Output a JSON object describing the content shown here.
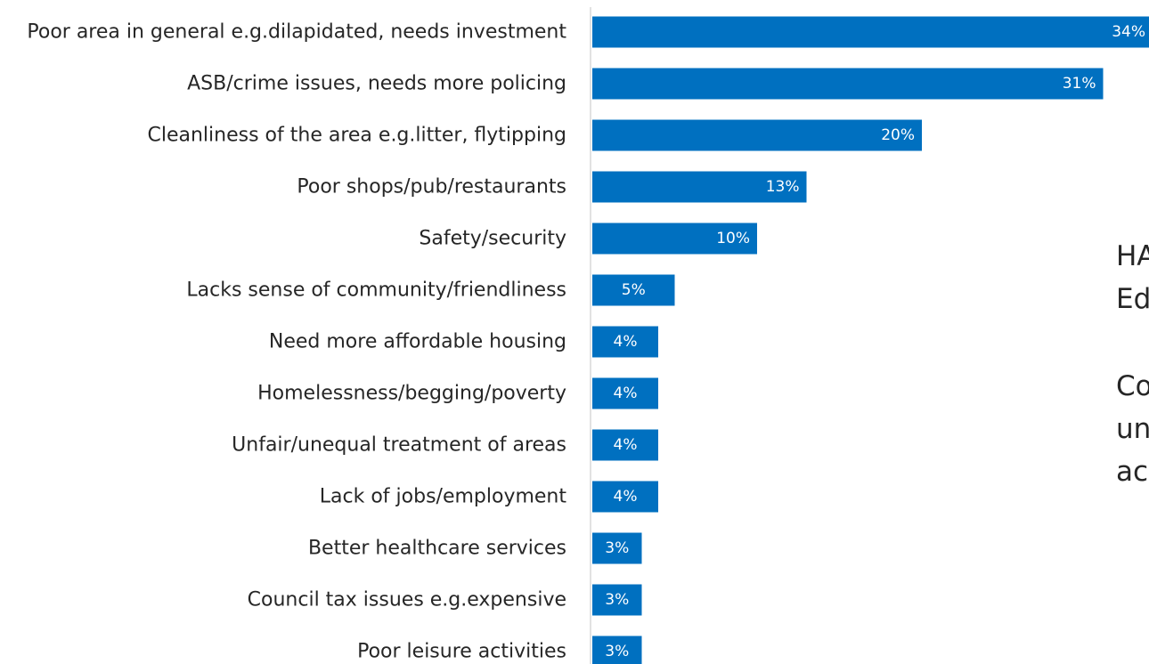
{
  "chart_data": {
    "type": "bar",
    "orientation": "horizontal",
    "categories": [
      "Poor area in general e.g.dilapidated, needs investment",
      "ASB/crime issues, needs more policing",
      "Cleanliness of the area e.g.litter, flytipping",
      "Poor shops/pub/restaurants",
      "Safety/security",
      "Lacks sense of community/friendliness",
      "Need more affordable housing",
      "Homelessness/begging/poverty",
      "Unfair/unequal treatment of areas",
      "Lack of jobs/employment",
      "Better healthcare services",
      "Council tax issues e.g.expensive",
      "Poor leisure activities"
    ],
    "values": [
      34,
      31,
      20,
      13,
      10,
      5,
      4,
      4,
      4,
      4,
      3,
      3,
      3
    ],
    "value_labels": [
      "34%",
      "31%",
      "20%",
      "13%",
      "10%",
      "5%",
      "4%",
      "4%",
      "4%",
      "4%",
      "3%",
      "3%",
      "3%"
    ],
    "unit": "%",
    "bar_color": "#0070C0",
    "title": "",
    "xlabel": "",
    "ylabel": "",
    "grid": false,
    "legend": "none"
  },
  "side_text": {
    "line1": "HA",
    "line2": "Ed",
    "line3": "Co",
    "line4": "un",
    "line5": "ac"
  }
}
